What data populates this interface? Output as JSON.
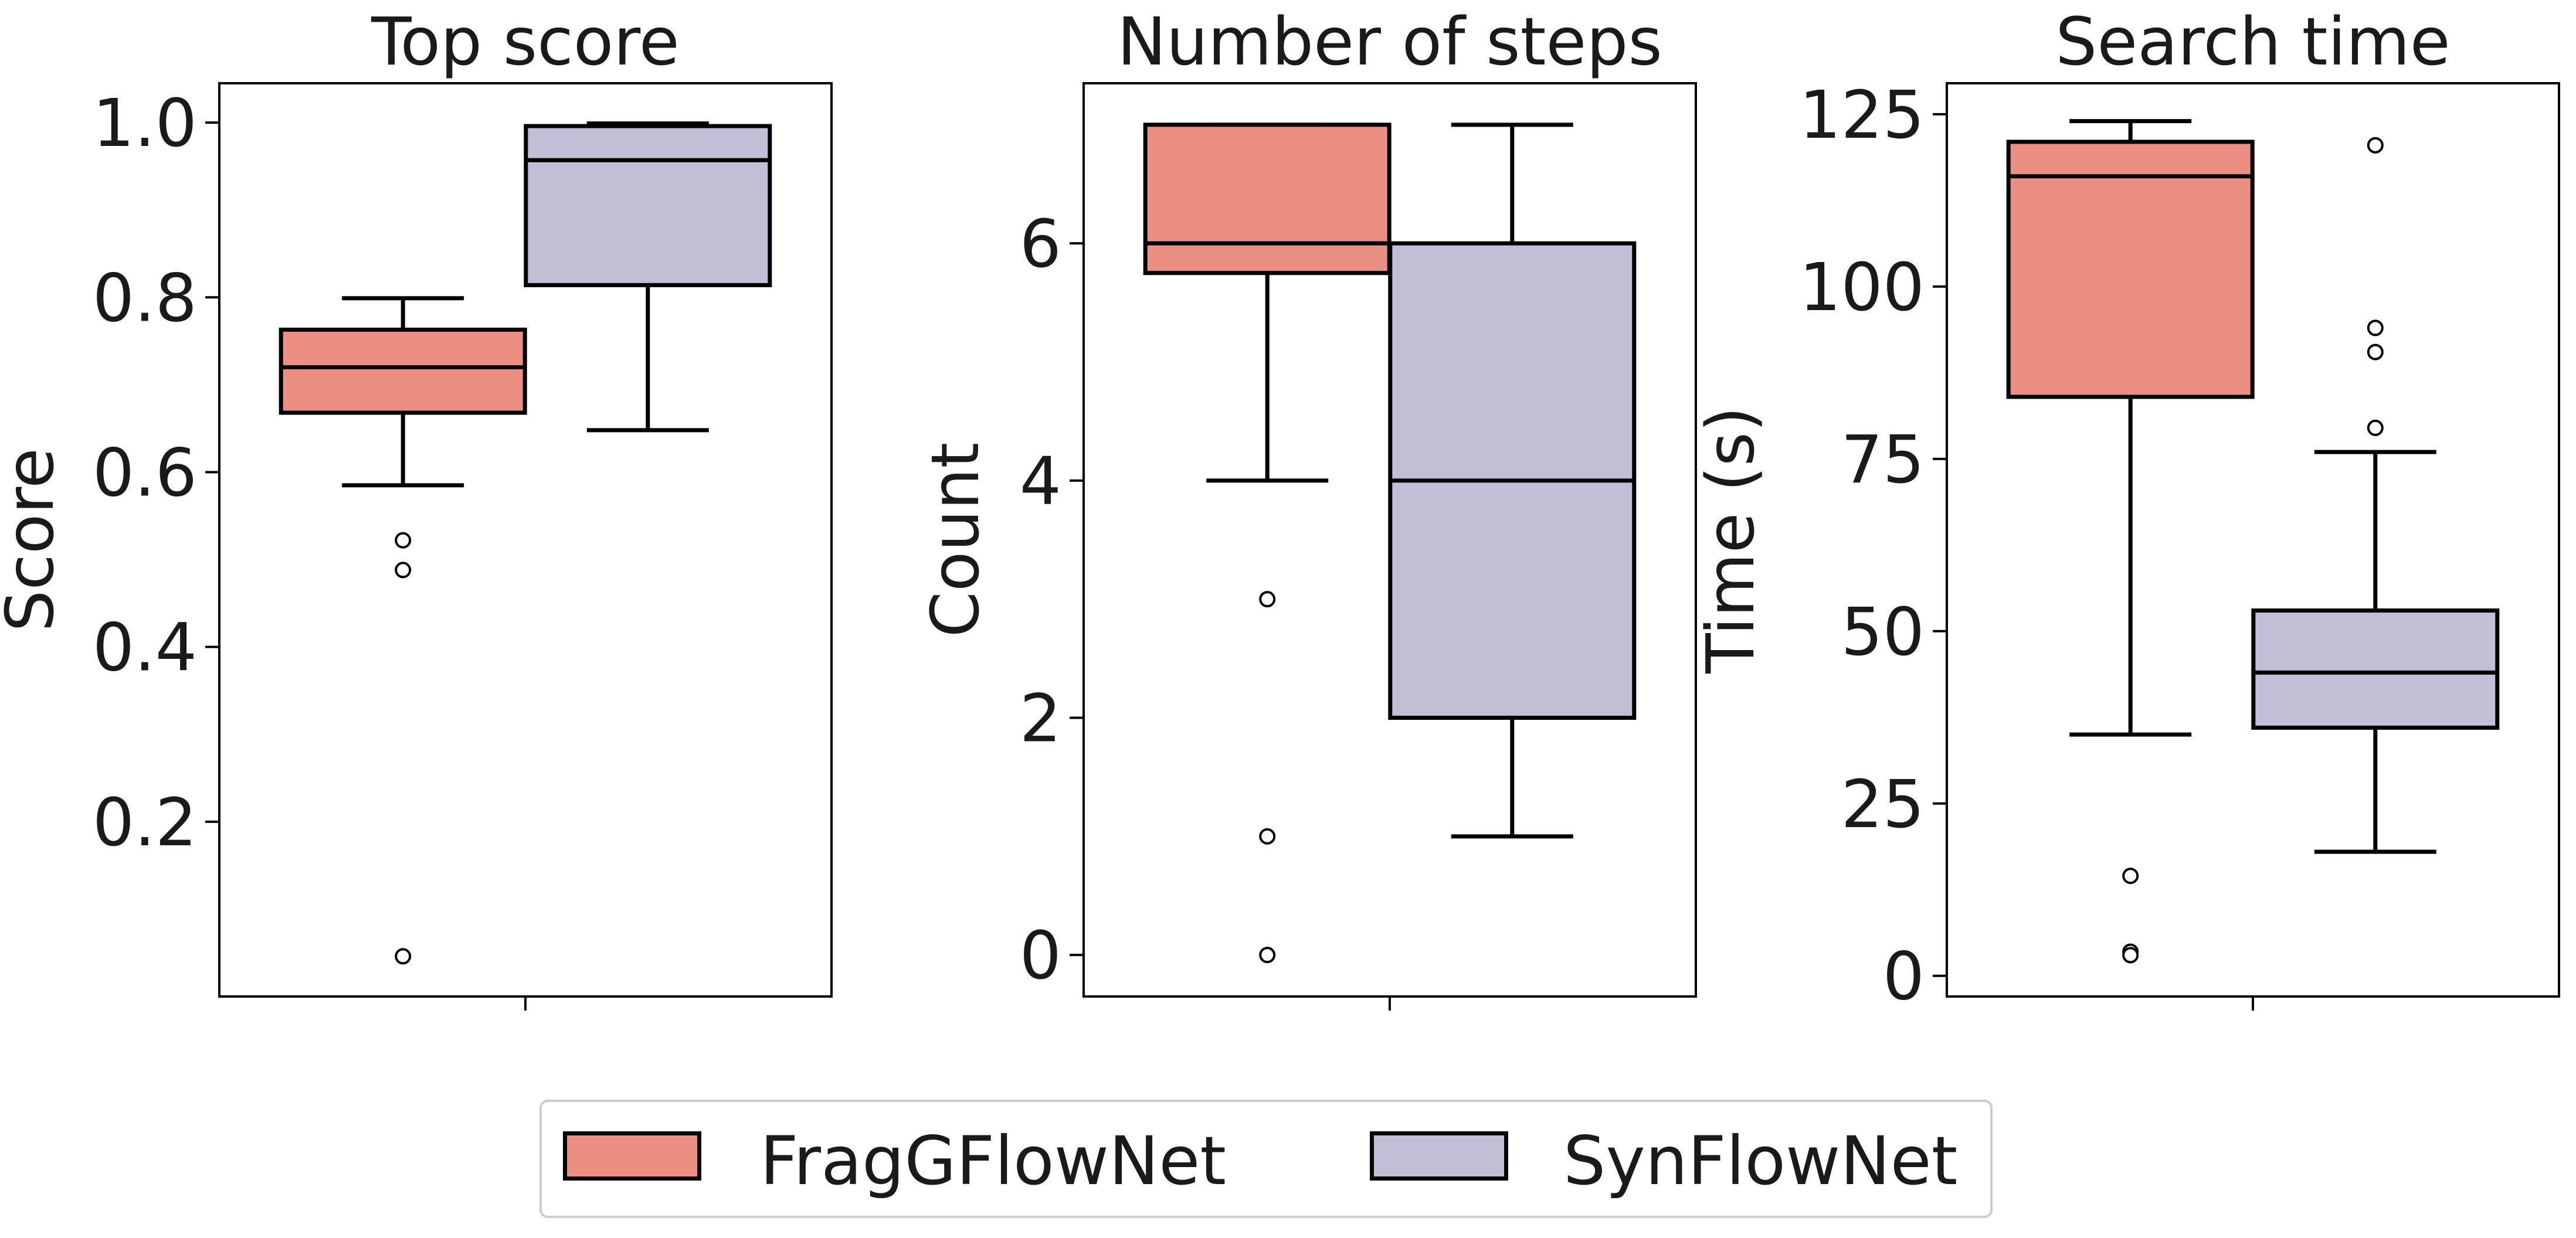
{
  "colors": {
    "FragGFlowNet": "#eb8f83",
    "SynFlowNet": "#c1bed6",
    "box_edge": "#000000"
  },
  "legend": {
    "placement": "bottom-center",
    "items": [
      {
        "label": "FragGFlowNet",
        "color": "#eb8f83"
      },
      {
        "label": "SynFlowNet",
        "color": "#c1bed6"
      }
    ]
  },
  "chart_data": [
    {
      "type": "box",
      "title": "Top score",
      "ylabel": "Score",
      "xlabel": "",
      "ylim": [
        0.0,
        1.045
      ],
      "yticks": [
        0.2,
        0.4,
        0.6,
        0.8,
        1.0
      ],
      "ytick_labels": [
        "0.2",
        "0.4",
        "0.6",
        "0.8",
        "1.0"
      ],
      "grid": false,
      "series": [
        {
          "name": "FragGFlowNet",
          "whislo": 0.585,
          "q1": 0.668,
          "med": 0.72,
          "q3": 0.763,
          "whishi": 0.799,
          "fliers": [
            0.522,
            0.488,
            0.046
          ]
        },
        {
          "name": "SynFlowNet",
          "whislo": 0.648,
          "q1": 0.814,
          "med": 0.957,
          "q3": 0.996,
          "whishi": 0.999,
          "fliers": []
        }
      ]
    },
    {
      "type": "box",
      "title": "Number of steps",
      "ylabel": "Count",
      "xlabel": "",
      "ylim": [
        -0.35,
        7.35
      ],
      "yticks": [
        0,
        2,
        4,
        6
      ],
      "ytick_labels": [
        "0",
        "2",
        "4",
        "6"
      ],
      "grid": false,
      "series": [
        {
          "name": "FragGFlowNet",
          "whislo": 4,
          "q1": 5.75,
          "med": 6,
          "q3": 7,
          "whishi": 7,
          "fliers": [
            3,
            1,
            0
          ]
        },
        {
          "name": "SynFlowNet",
          "whislo": 1,
          "q1": 2,
          "med": 4,
          "q3": 6,
          "whishi": 7,
          "fliers": []
        }
      ]
    },
    {
      "type": "box",
      "title": "Search time",
      "ylabel": "Time (s)",
      "xlabel": "",
      "ylim": [
        -3,
        129.5
      ],
      "yticks": [
        0,
        25,
        50,
        75,
        100,
        125
      ],
      "ytick_labels": [
        "0",
        "25",
        "50",
        "75",
        "100",
        "125"
      ],
      "grid": false,
      "series": [
        {
          "name": "FragGFlowNet",
          "whislo": 35,
          "q1": 84,
          "med": 116,
          "q3": 121,
          "whishi": 124,
          "fliers": [
            14.5,
            3.5,
            3
          ]
        },
        {
          "name": "SynFlowNet",
          "whislo": 18,
          "q1": 36,
          "med": 44,
          "q3": 53,
          "whishi": 76,
          "fliers": [
            120.5,
            94,
            90.5,
            79.5
          ]
        }
      ]
    }
  ]
}
